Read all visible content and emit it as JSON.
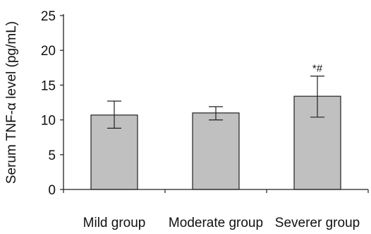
{
  "chart_data": {
    "type": "bar",
    "categories": [
      "Mild group",
      "Moderate group",
      "Severer group"
    ],
    "values": [
      10.7,
      11.0,
      13.4
    ],
    "error_high": [
      12.7,
      11.9,
      16.3
    ],
    "error_low": [
      8.8,
      10.0,
      10.4
    ],
    "annotations": [
      "",
      "",
      "*#"
    ],
    "title": "",
    "xlabel": "",
    "ylabel": "Serum TNF-α level (pg/mL)",
    "ylim": [
      0,
      25
    ],
    "yticks": [
      "0",
      "5",
      "10",
      "15",
      "20",
      "25"
    ],
    "grid": false,
    "legend": "none",
    "bar_color": "#c0c0c0",
    "edge_color": "#222222"
  }
}
